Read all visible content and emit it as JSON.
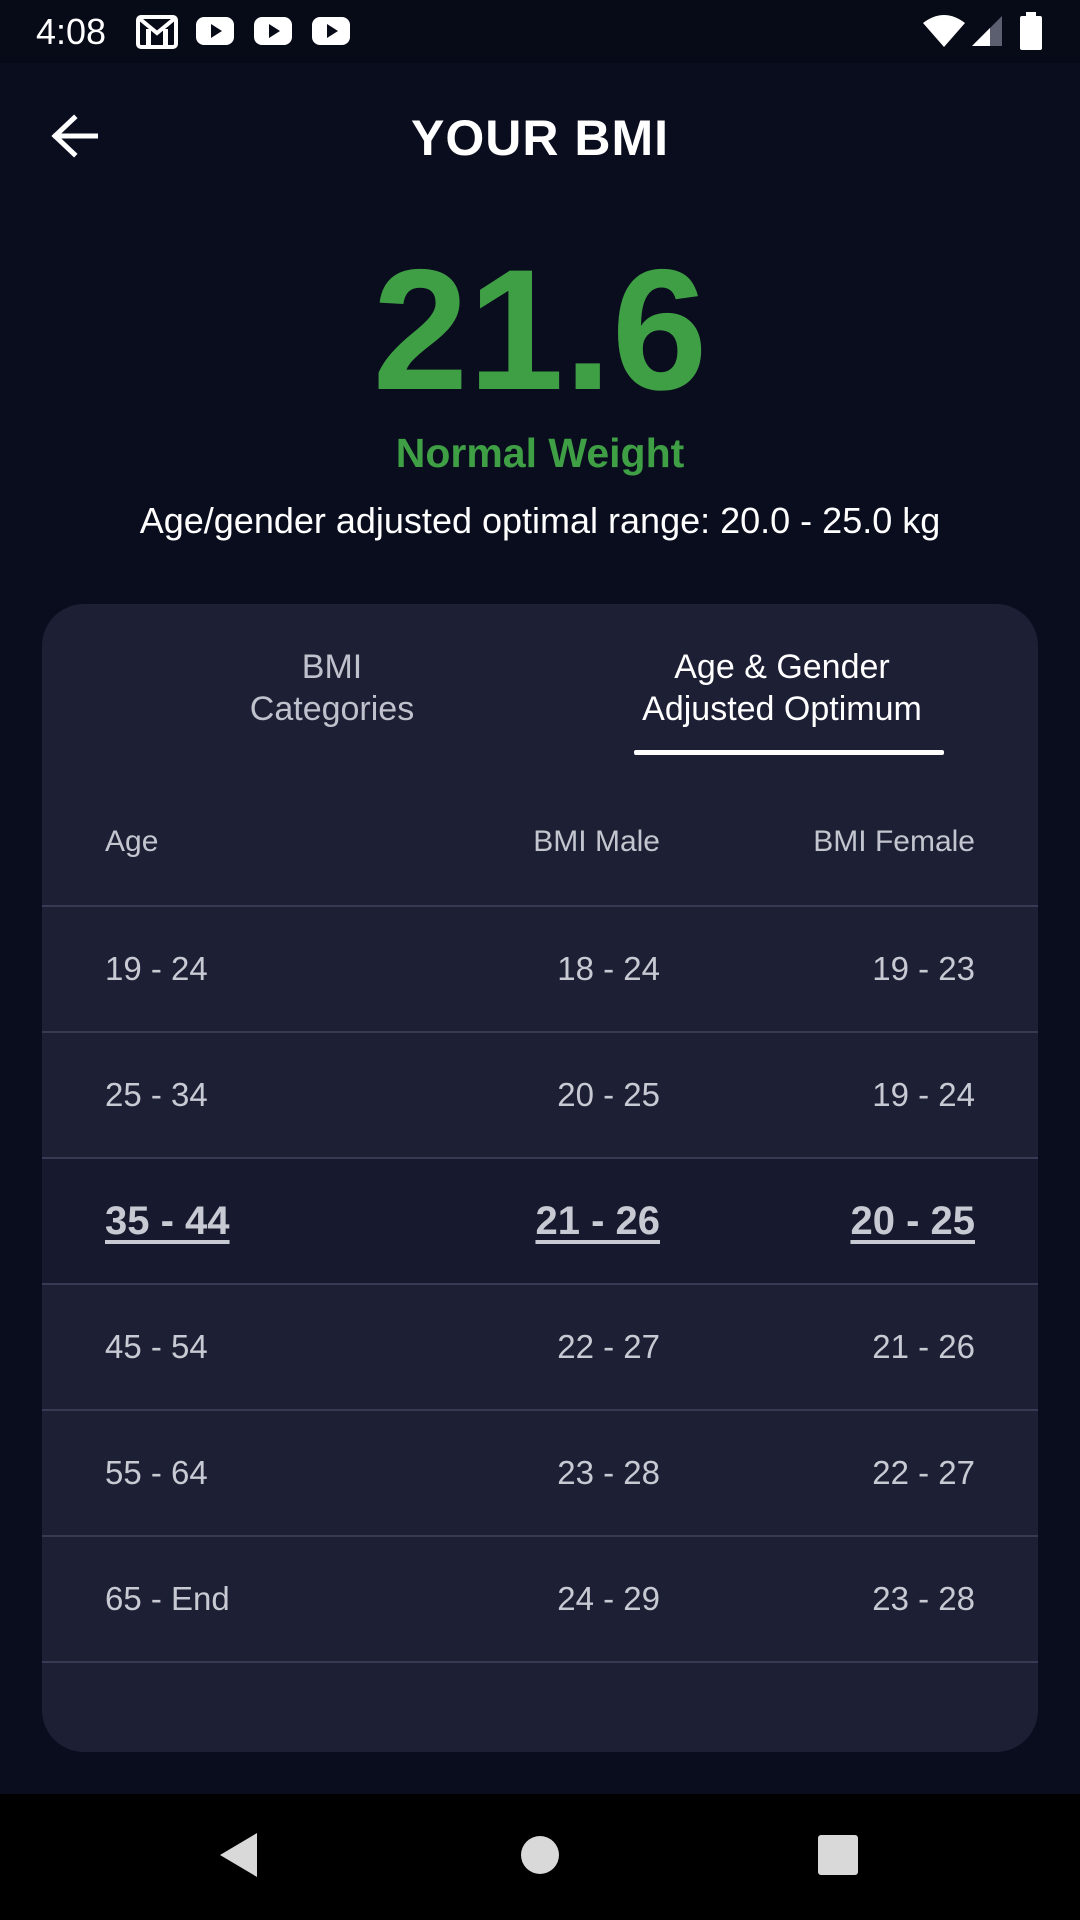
{
  "status_bar": {
    "time": "4:08",
    "left_icons": [
      "gmail-icon",
      "youtube-icon",
      "youtube-icon",
      "youtube-icon"
    ],
    "right_icons": [
      "wifi-icon",
      "cell-signal-icon",
      "battery-icon"
    ]
  },
  "header": {
    "title": "YOUR BMI",
    "back_icon": "arrow-left-icon"
  },
  "result": {
    "bmi_value": "21.6",
    "category": "Normal Weight",
    "optimal_range": "Age/gender adjusted optimal range: 20.0 - 25.0 kg",
    "accent_color": "#3f9f45"
  },
  "tabs": [
    {
      "label_line1": "BMI",
      "label_line2": "Categories",
      "selected": false
    },
    {
      "label_line1": "Age & Gender",
      "label_line2": "Adjusted Optimum",
      "selected": true
    }
  ],
  "table": {
    "columns": [
      "Age",
      "BMI Male",
      "BMI Female"
    ],
    "rows": [
      {
        "age": "19 - 24",
        "male": "18 - 24",
        "female": "19 - 23",
        "highlighted": false
      },
      {
        "age": "25 - 34",
        "male": "20 - 25",
        "female": "19 - 24",
        "highlighted": false
      },
      {
        "age": "35 - 44",
        "male": "21 - 26",
        "female": "20 - 25",
        "highlighted": true
      },
      {
        "age": "45 - 54",
        "male": "22 - 27",
        "female": "21 - 26",
        "highlighted": false
      },
      {
        "age": "55 - 64",
        "male": "23 - 28",
        "female": "22 - 27",
        "highlighted": false
      },
      {
        "age": "65 - End",
        "male": "24 - 29",
        "female": "23 - 28",
        "highlighted": false
      }
    ]
  },
  "nav_bar": {
    "icons": [
      "nav-back-icon",
      "nav-home-icon",
      "nav-recents-icon"
    ]
  }
}
